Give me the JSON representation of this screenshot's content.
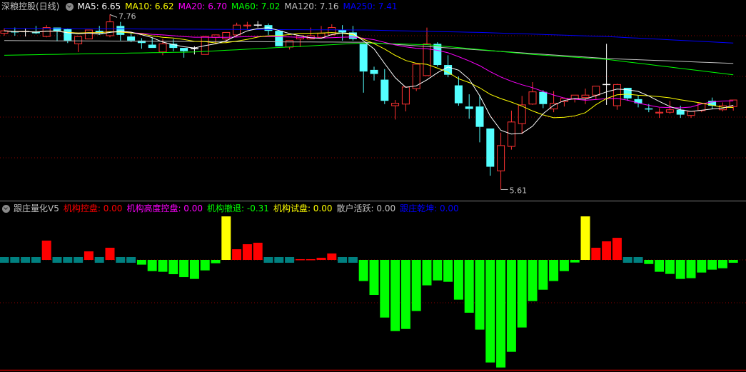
{
  "header": {
    "title": "深粮控股(日线)",
    "ma": [
      {
        "label": "MA5: 6.65",
        "color": "#ffffff"
      },
      {
        "label": "MA10: 6.62",
        "color": "#ffff00"
      },
      {
        "label": "MA20: 6.70",
        "color": "#ff00ff"
      },
      {
        "label": "MA60: 7.02",
        "color": "#00ff00"
      },
      {
        "label": "MA120: 7.16",
        "color": "#c0c0c0"
      },
      {
        "label": "MA250: 7.41",
        "color": "#0000ff"
      }
    ]
  },
  "indicator_header": {
    "title": "跟庄量化V5",
    "items": [
      {
        "label": "机构控盘: 0.00",
        "color": "#ff0000"
      },
      {
        "label": "机构高度控盘: 0.00",
        "color": "#ff00ff"
      },
      {
        "label": "机构撤退: -0.31",
        "color": "#00ff00"
      },
      {
        "label": "机构试盘: 0.00",
        "color": "#ffff00"
      },
      {
        "label": "散户活跃: 0.00",
        "color": "#c0c0c0"
      },
      {
        "label": "跟庄乾坤: 0.00",
        "color": "#0000ff"
      }
    ]
  },
  "colors": {
    "up": "#ff3232",
    "down": "#54ffff",
    "doji": "#ffffff",
    "grid": "#8b0000",
    "teal": "#008080",
    "red": "#ff0000",
    "green": "#00ff00",
    "yellow": "#ffff00"
  },
  "chart_data": [
    {
      "type": "candlestick",
      "ylim": [
        5.5,
        7.8
      ],
      "gridlines": [
        7.5,
        7.0,
        6.5,
        6.0
      ],
      "annotations": [
        {
          "index": 10,
          "text": "7.76"
        },
        {
          "index": 47,
          "text": "5.61"
        }
      ],
      "ohlc": [
        [
          7.53,
          7.59,
          7.5,
          7.56
        ],
        [
          7.55,
          7.6,
          7.5,
          7.54
        ],
        [
          7.55,
          7.59,
          7.49,
          7.55
        ],
        [
          7.55,
          7.62,
          7.52,
          7.53
        ],
        [
          7.49,
          7.63,
          7.48,
          7.6
        ],
        [
          7.6,
          7.6,
          7.43,
          7.56
        ],
        [
          7.58,
          7.59,
          7.41,
          7.44
        ],
        [
          7.4,
          7.49,
          7.3,
          7.49
        ],
        [
          7.46,
          7.57,
          7.46,
          7.57
        ],
        [
          7.56,
          7.62,
          7.51,
          7.53
        ],
        [
          7.5,
          7.76,
          7.48,
          7.67
        ],
        [
          7.62,
          7.67,
          7.44,
          7.51
        ],
        [
          7.49,
          7.54,
          7.42,
          7.44
        ],
        [
          7.44,
          7.47,
          7.34,
          7.41
        ],
        [
          7.39,
          7.48,
          7.35,
          7.35
        ],
        [
          7.3,
          7.46,
          7.26,
          7.4
        ],
        [
          7.4,
          7.46,
          7.31,
          7.35
        ],
        [
          7.35,
          7.35,
          7.23,
          7.31
        ],
        [
          7.34,
          7.37,
          7.27,
          7.34
        ],
        [
          7.27,
          7.49,
          7.27,
          7.49
        ],
        [
          7.48,
          7.51,
          7.4,
          7.51
        ],
        [
          7.46,
          7.54,
          7.41,
          7.54
        ],
        [
          7.51,
          7.66,
          7.49,
          7.63
        ],
        [
          7.62,
          7.67,
          7.58,
          7.63
        ],
        [
          7.63,
          7.68,
          7.6,
          7.63
        ],
        [
          7.63,
          7.65,
          7.51,
          7.56
        ],
        [
          7.56,
          7.56,
          7.37,
          7.37
        ],
        [
          7.36,
          7.44,
          7.33,
          7.44
        ],
        [
          7.46,
          7.5,
          7.36,
          7.5
        ],
        [
          7.46,
          7.6,
          7.46,
          7.5
        ],
        [
          7.48,
          7.62,
          7.48,
          7.53
        ],
        [
          7.51,
          7.64,
          7.51,
          7.6
        ],
        [
          7.57,
          7.63,
          7.44,
          7.54
        ],
        [
          7.54,
          7.62,
          7.44,
          7.46
        ],
        [
          7.4,
          7.4,
          6.8,
          7.06
        ],
        [
          7.08,
          7.12,
          6.95,
          7.03
        ],
        [
          6.96,
          7.09,
          6.66,
          6.7
        ],
        [
          6.64,
          6.71,
          6.47,
          6.67
        ],
        [
          6.66,
          6.87,
          6.57,
          6.87
        ],
        [
          6.85,
          7.15,
          6.82,
          7.15
        ],
        [
          7.01,
          7.6,
          7.01,
          7.4
        ],
        [
          7.4,
          7.42,
          7.12,
          7.14
        ],
        [
          7.14,
          7.26,
          6.99,
          7.02
        ],
        [
          6.89,
          7.0,
          6.64,
          6.67
        ],
        [
          6.63,
          6.78,
          6.48,
          6.6
        ],
        [
          6.63,
          6.77,
          6.19,
          6.38
        ],
        [
          6.36,
          6.36,
          5.78,
          5.89
        ],
        [
          5.84,
          6.31,
          5.61,
          6.15
        ],
        [
          6.14,
          6.58,
          6.1,
          6.44
        ],
        [
          6.42,
          6.76,
          6.29,
          6.65
        ],
        [
          6.66,
          6.93,
          6.65,
          6.81
        ],
        [
          6.81,
          6.83,
          6.61,
          6.66
        ],
        [
          6.6,
          6.82,
          6.56,
          6.67
        ],
        [
          6.69,
          6.74,
          6.63,
          6.73
        ],
        [
          6.72,
          6.77,
          6.68,
          6.77
        ],
        [
          6.74,
          6.85,
          6.66,
          6.77
        ],
        [
          6.77,
          6.88,
          6.72,
          6.88
        ],
        [
          6.9,
          7.4,
          6.65,
          6.9
        ],
        [
          6.64,
          6.91,
          6.59,
          6.9
        ],
        [
          6.86,
          6.86,
          6.7,
          6.73
        ],
        [
          6.72,
          6.77,
          6.62,
          6.67
        ],
        [
          6.6,
          6.66,
          6.56,
          6.6
        ],
        [
          6.55,
          6.61,
          6.49,
          6.56
        ],
        [
          6.56,
          6.7,
          6.54,
          6.59
        ],
        [
          6.59,
          6.64,
          6.49,
          6.53
        ],
        [
          6.52,
          6.57,
          6.49,
          6.57
        ],
        [
          6.58,
          6.67,
          6.56,
          6.67
        ],
        [
          6.7,
          6.74,
          6.6,
          6.64
        ],
        [
          6.59,
          6.68,
          6.57,
          6.64
        ],
        [
          6.63,
          6.71,
          6.58,
          6.71
        ]
      ],
      "ma_long": {
        "MA60": [
          [
            0,
            7.26
          ],
          [
            18,
            7.3
          ],
          [
            34,
            7.41
          ],
          [
            40,
            7.39
          ],
          [
            50,
            7.27
          ],
          [
            57,
            7.21
          ],
          [
            69,
            7.02
          ]
        ],
        "MA120": [
          [
            0,
            7.44
          ],
          [
            34,
            7.42
          ],
          [
            57,
            7.22
          ],
          [
            69,
            7.16
          ]
        ],
        "MA250": [
          [
            0,
            7.59
          ],
          [
            17,
            7.58
          ],
          [
            34,
            7.57
          ],
          [
            45,
            7.54
          ],
          [
            57,
            7.49
          ],
          [
            69,
            7.41
          ]
        ]
      }
    },
    {
      "type": "bar",
      "series_colors": [
        "teal",
        "red",
        "green",
        "yellow"
      ],
      "bars": [
        [
          "teal",
          0
        ],
        [
          "teal",
          0
        ],
        [
          "teal",
          0
        ],
        [
          "teal",
          0
        ],
        [
          "red",
          2.08
        ],
        [
          "teal",
          0
        ],
        [
          "teal",
          0
        ],
        [
          "teal",
          0
        ],
        [
          "red",
          0.92
        ],
        [
          "teal",
          0
        ],
        [
          "red",
          1.31
        ],
        [
          "teal",
          0
        ],
        [
          "teal",
          0
        ],
        [
          "green",
          -0.51
        ],
        [
          "green",
          -1.21
        ],
        [
          "green",
          -1.28
        ],
        [
          "green",
          -1.54
        ],
        [
          "green",
          -1.85
        ],
        [
          "green",
          -2.05
        ],
        [
          "green",
          -1.13
        ],
        [
          "green",
          -0.36
        ],
        [
          "yellow",
          4.69
        ],
        [
          "red",
          1.15
        ],
        [
          "red",
          1.69
        ],
        [
          "red",
          1.85
        ],
        [
          "teal",
          0
        ],
        [
          "teal",
          0
        ],
        [
          "teal",
          0
        ],
        [
          "red",
          0.08
        ],
        [
          "red",
          0.08
        ],
        [
          "red",
          0.23
        ],
        [
          "red",
          0.69
        ],
        [
          "teal",
          0
        ],
        [
          "teal",
          0
        ],
        [
          "green",
          -2.28
        ],
        [
          "green",
          -3.77
        ],
        [
          "green",
          -6.21
        ],
        [
          "green",
          -7.67
        ],
        [
          "green",
          -7.44
        ],
        [
          "green",
          -5.51
        ],
        [
          "green",
          -2.74
        ],
        [
          "green",
          -2.21
        ],
        [
          "green",
          -2.36
        ],
        [
          "green",
          -4.28
        ],
        [
          "green",
          -5.69
        ],
        [
          "green",
          -7.51
        ],
        [
          "green",
          -11.05
        ],
        [
          "green",
          -11.59
        ],
        [
          "green",
          -9.9
        ],
        [
          "green",
          -7.28
        ],
        [
          "green",
          -4.44
        ],
        [
          "green",
          -3.21
        ],
        [
          "green",
          -2.28
        ],
        [
          "green",
          -1.21
        ],
        [
          "green",
          -0.28
        ],
        [
          "yellow",
          4.69
        ],
        [
          "red",
          1.31
        ],
        [
          "red",
          2.0
        ],
        [
          "red",
          2.38
        ],
        [
          "teal",
          0
        ],
        [
          "teal",
          0
        ],
        [
          "green",
          -0.44
        ],
        [
          "green",
          -1.28
        ],
        [
          "green",
          -1.51
        ],
        [
          "green",
          -2.05
        ],
        [
          "green",
          -1.97
        ],
        [
          "green",
          -1.36
        ],
        [
          "green",
          -1.05
        ],
        [
          "green",
          -0.9
        ],
        [
          "green",
          -0.31
        ]
      ]
    }
  ]
}
